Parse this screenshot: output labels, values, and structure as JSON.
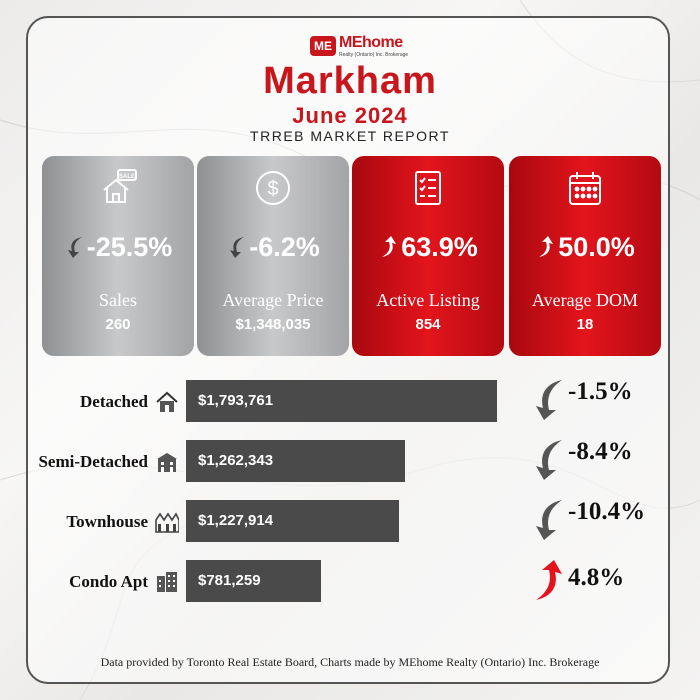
{
  "brand": {
    "logo_mark": "ME",
    "logo_name": "MEhome",
    "logo_sub": "Realty (Ontario) Inc. Brokerage"
  },
  "header": {
    "title": "Markham",
    "subtitle": "June 2024",
    "report": "TRREB MARKET REPORT"
  },
  "kpis": [
    {
      "label": "Sales",
      "value": "260",
      "change": "-25.5%",
      "direction": "down",
      "icon": "sale-house-icon",
      "style": "gray"
    },
    {
      "label": "Average Price",
      "value": "$1,348,035",
      "change": "-6.2%",
      "direction": "down",
      "icon": "dollar-icon",
      "style": "gray"
    },
    {
      "label": "Active Listing",
      "value": "854",
      "change": "63.9%",
      "direction": "up",
      "icon": "checklist-icon",
      "style": "red"
    },
    {
      "label": "Average DOM",
      "value": "18",
      "change": "50.0%",
      "direction": "up",
      "icon": "calendar-icon",
      "style": "red"
    }
  ],
  "chart_data": {
    "type": "bar",
    "orientation": "horizontal",
    "categories": [
      "Detached",
      "Semi-Detached",
      "Townhouse",
      "Condo Apt"
    ],
    "values": [
      1793761,
      1262343,
      1227914,
      781259
    ],
    "value_labels": [
      "$1,793,761",
      "$1,262,343",
      "$1,227,914",
      "$781,259"
    ],
    "changes": [
      "-1.5%",
      "-8.4%",
      "-10.4%",
      "4.8%"
    ],
    "change_directions": [
      "down",
      "down",
      "down",
      "up"
    ],
    "category_icons": [
      "house-icon",
      "semi-detached-icon",
      "townhouse-icon",
      "condo-building-icon"
    ],
    "xlim": [
      0,
      1800000
    ],
    "bar_color": "#4a4a4a",
    "grid": false
  },
  "colors": {
    "accent": "#c8161d",
    "up_arrow": "#e3141c",
    "down_arrow": "#555555"
  },
  "footer": {
    "text": "Data provided by Toronto Real Estate Board, Charts made by MEhome Realty (Ontario) Inc. Brokerage"
  }
}
